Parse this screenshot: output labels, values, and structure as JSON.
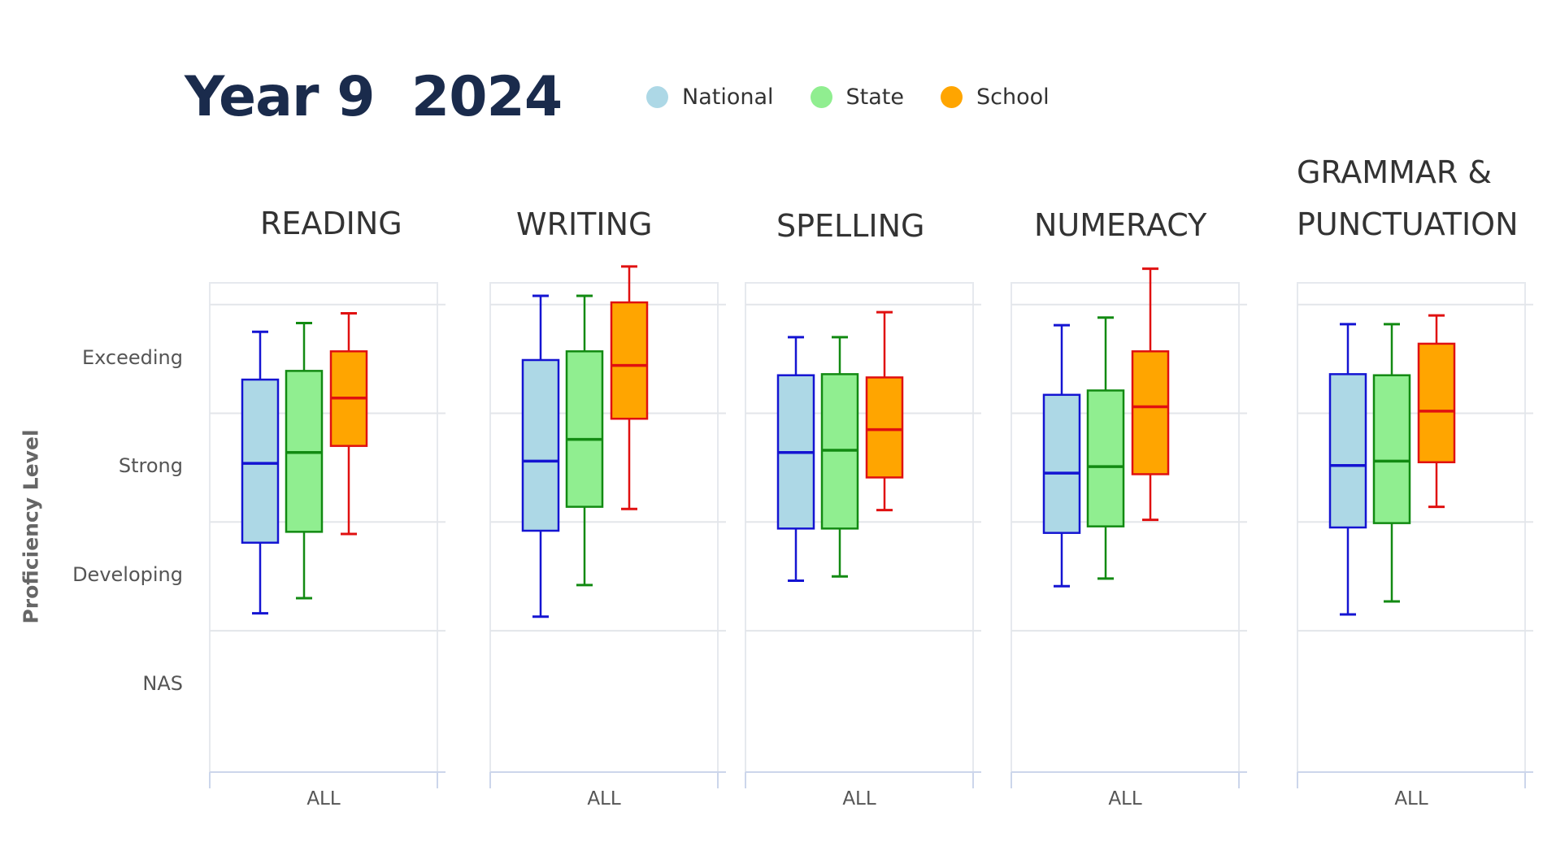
{
  "chart_data": {
    "type": "box",
    "title": "Year 9  2024",
    "ylabel": "Proficiency Level",
    "y_levels": [
      "NAS",
      "Developing",
      "Strong",
      "Exceeding"
    ],
    "ylim": [
      -0.8,
      3.7
    ],
    "legend": {
      "placement": "top",
      "items": [
        {
          "name": "National",
          "color": "#add8e6",
          "stroke": "#1414d2"
        },
        {
          "name": "State",
          "color": "#90ee90",
          "stroke": "#128a12"
        },
        {
          "name": "School",
          "color": "#ffa500",
          "stroke": "#e01010"
        }
      ]
    },
    "category": "ALL",
    "panels": [
      {
        "title_lines": [
          "READING"
        ],
        "boxes": [
          {
            "series": "National",
            "min": 0.66,
            "q1": 1.31,
            "median": 2.04,
            "q3": 2.81,
            "max": 3.25
          },
          {
            "series": "State",
            "min": 0.8,
            "q1": 1.41,
            "median": 2.14,
            "q3": 2.89,
            "max": 3.33
          },
          {
            "series": "School",
            "min": 1.39,
            "q1": 2.2,
            "median": 2.64,
            "q3": 3.07,
            "max": 3.42
          }
        ]
      },
      {
        "title_lines": [
          "WRITING"
        ],
        "boxes": [
          {
            "series": "National",
            "min": 0.63,
            "q1": 1.42,
            "median": 2.06,
            "q3": 2.99,
            "max": 3.58
          },
          {
            "series": "State",
            "min": 0.92,
            "q1": 1.64,
            "median": 2.26,
            "q3": 3.07,
            "max": 3.58
          },
          {
            "series": "School",
            "min": 1.62,
            "q1": 2.45,
            "median": 2.94,
            "q3": 3.52,
            "max": 3.85
          }
        ]
      },
      {
        "title_lines": [
          "SPELLING"
        ],
        "boxes": [
          {
            "series": "National",
            "min": 0.96,
            "q1": 1.44,
            "median": 2.14,
            "q3": 2.85,
            "max": 3.2
          },
          {
            "series": "State",
            "min": 1.0,
            "q1": 1.44,
            "median": 2.16,
            "q3": 2.86,
            "max": 3.2
          },
          {
            "series": "School",
            "min": 1.61,
            "q1": 1.91,
            "median": 2.35,
            "q3": 2.83,
            "max": 3.43
          }
        ]
      },
      {
        "title_lines": [
          "NUMERACY"
        ],
        "boxes": [
          {
            "series": "National",
            "min": 0.91,
            "q1": 1.4,
            "median": 1.95,
            "q3": 2.67,
            "max": 3.31
          },
          {
            "series": "State",
            "min": 0.98,
            "q1": 1.46,
            "median": 2.01,
            "q3": 2.71,
            "max": 3.38
          },
          {
            "series": "School",
            "min": 1.52,
            "q1": 1.94,
            "median": 2.56,
            "q3": 3.07,
            "max": 3.83
          }
        ]
      },
      {
        "title_lines": [
          "GRAMMAR &",
          "PUNCTUATION"
        ],
        "boxes": [
          {
            "series": "National",
            "min": 0.65,
            "q1": 1.45,
            "median": 2.02,
            "q3": 2.86,
            "max": 3.32
          },
          {
            "series": "State",
            "min": 0.77,
            "q1": 1.49,
            "median": 2.06,
            "q3": 2.85,
            "max": 3.32
          },
          {
            "series": "School",
            "min": 1.64,
            "q1": 2.05,
            "median": 2.52,
            "q3": 3.14,
            "max": 3.4
          }
        ]
      }
    ]
  }
}
